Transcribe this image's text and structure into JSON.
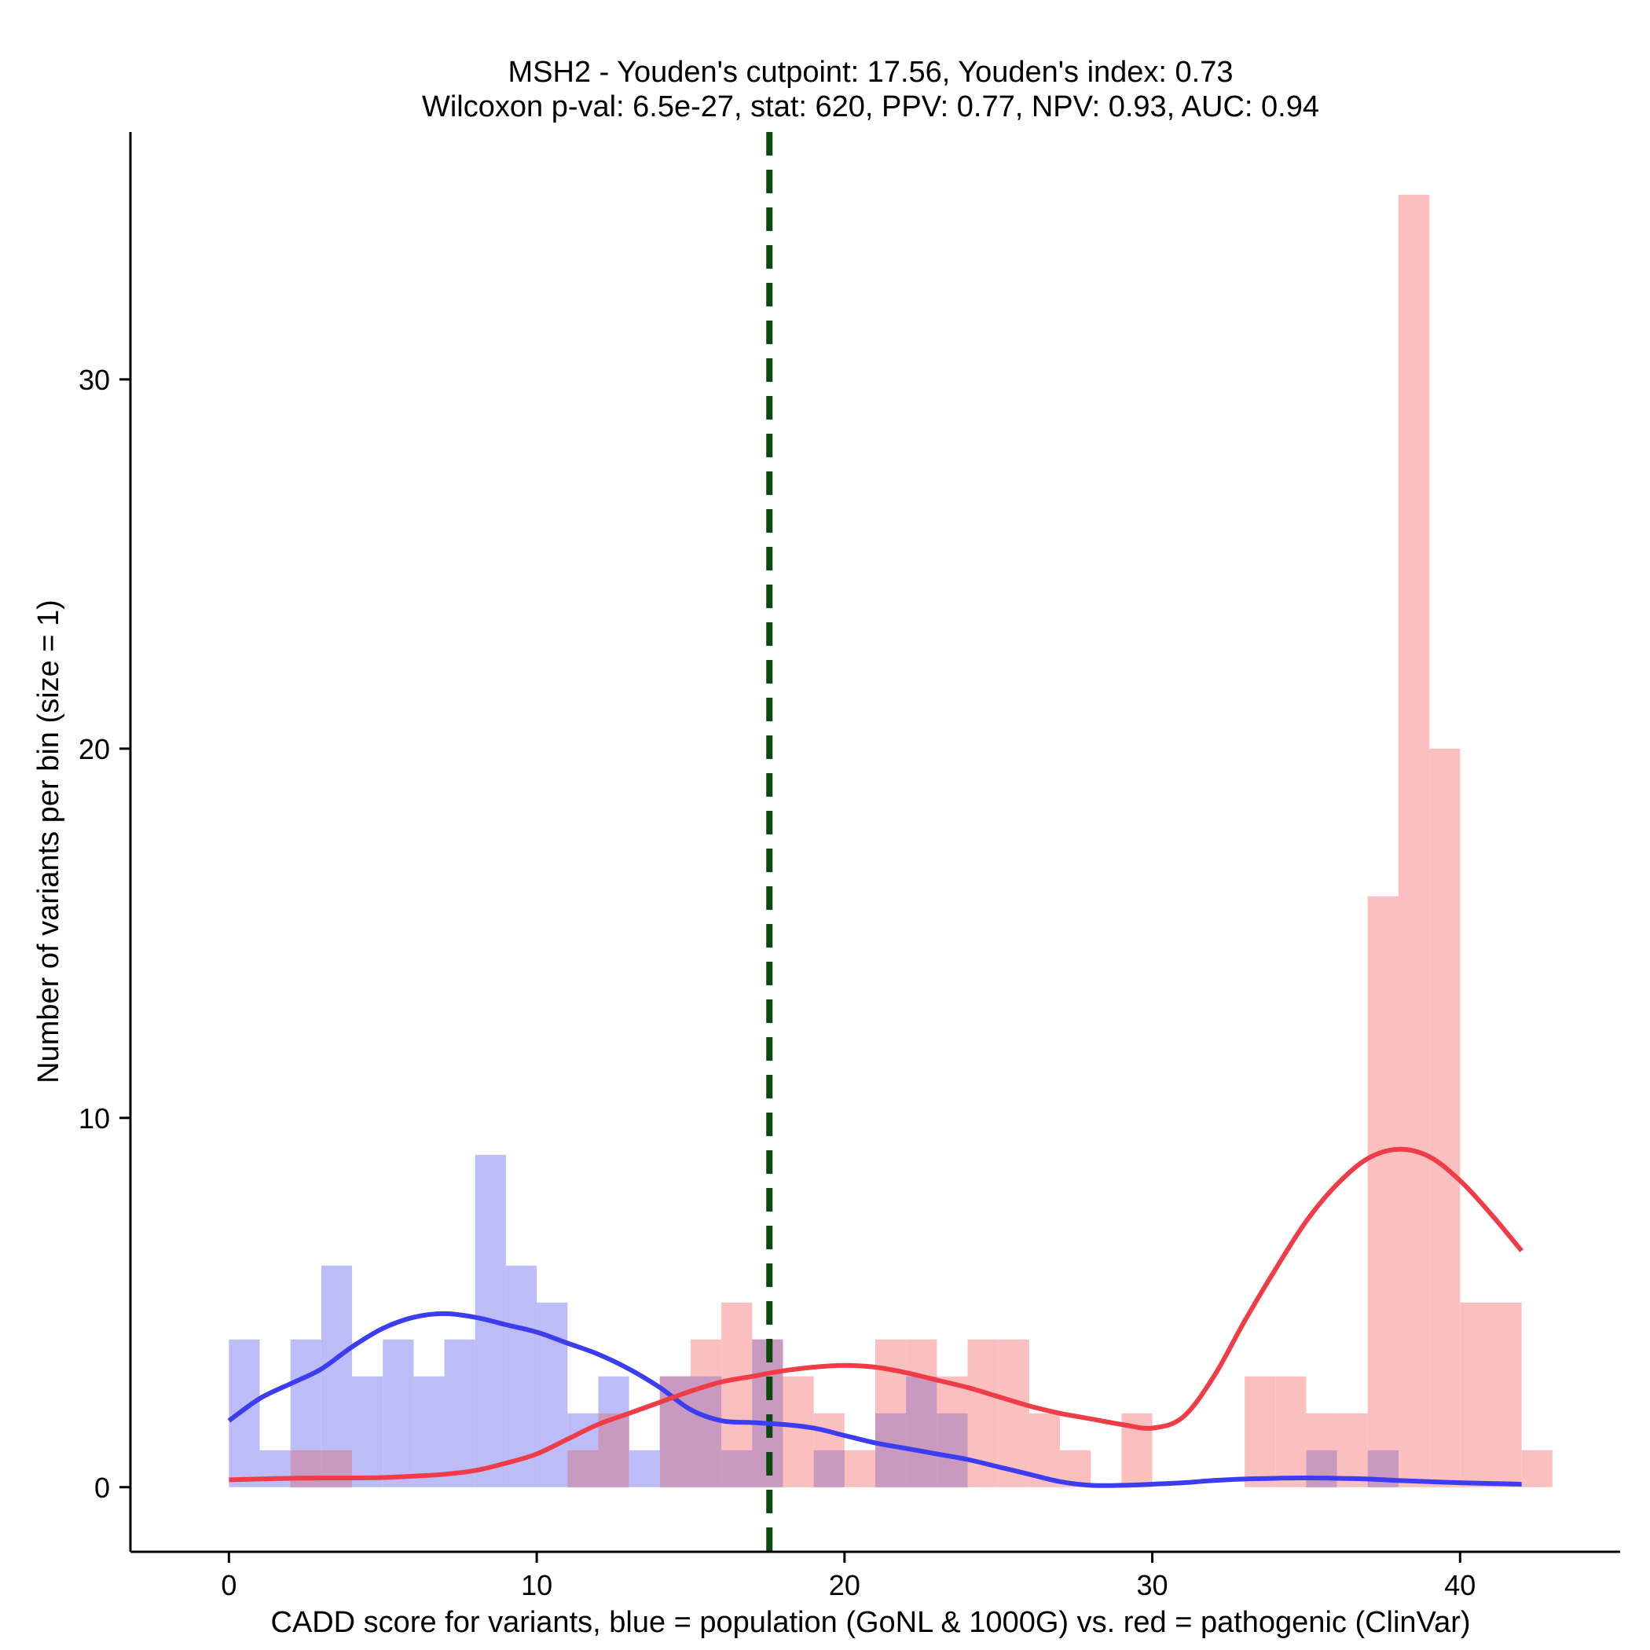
{
  "chart_data": {
    "type": "bar",
    "title_line1": "MSH2 - Youden's cutpoint: 17.56, Youden's index: 0.73",
    "title_line2": "Wilcoxon p-val: 6.5e-27, stat: 620, PPV: 0.77, NPV: 0.93, AUC: 0.94",
    "xlabel": "CADD score for variants, blue = population (GoNL & 1000G) vs. red = pathogenic (ClinVar)",
    "ylabel": "Number of variants per bin (size = 1)",
    "xlim": [
      -3.2,
      45.2
    ],
    "ylim": [
      -1.75,
      36.7
    ],
    "x_ticks": [
      0,
      10,
      20,
      30,
      40
    ],
    "y_ticks": [
      0,
      10,
      20,
      30
    ],
    "bin_width": 1,
    "cutpoint": 17.56,
    "colors": {
      "population_bar": "#bcbcf8",
      "pathogenic_bar": "#fcbfbf",
      "overlap_bar": "#c89ac0",
      "population_line": "#3c3cf0",
      "pathogenic_line": "#f03c46",
      "cutpoint_line": "#0a4a0a"
    },
    "series": [
      {
        "name": "population",
        "bin_starts": [
          0,
          1,
          2,
          3,
          4,
          5,
          6,
          7,
          8,
          9,
          10,
          11,
          12,
          13,
          14,
          15,
          16,
          17,
          18,
          19,
          20,
          21,
          22,
          23,
          24,
          25,
          26,
          27,
          28,
          29,
          30,
          31,
          32,
          33,
          34,
          35,
          36,
          37,
          38,
          39,
          40,
          41,
          42
        ],
        "values": [
          4,
          1,
          4,
          6,
          3,
          4,
          3,
          4,
          9,
          6,
          5,
          2,
          3,
          1,
          3,
          3,
          1,
          4,
          0,
          1,
          0,
          2,
          3,
          2,
          0,
          0,
          0,
          0,
          0,
          0,
          0,
          0,
          0,
          0,
          0,
          1,
          0,
          1,
          0,
          0,
          0,
          0,
          0
        ]
      },
      {
        "name": "pathogenic",
        "bin_starts": [
          0,
          1,
          2,
          3,
          4,
          5,
          6,
          7,
          8,
          9,
          10,
          11,
          12,
          13,
          14,
          15,
          16,
          17,
          18,
          19,
          20,
          21,
          22,
          23,
          24,
          25,
          26,
          27,
          28,
          29,
          30,
          31,
          32,
          33,
          34,
          35,
          36,
          37,
          38,
          39,
          40,
          41,
          42
        ],
        "values": [
          0,
          0,
          1,
          1,
          0,
          0,
          0,
          0,
          0,
          0,
          0,
          1,
          2,
          0,
          3,
          4,
          5,
          4,
          3,
          2,
          1,
          4,
          4,
          3,
          4,
          4,
          2,
          1,
          0,
          2,
          0,
          0,
          0,
          3,
          3,
          2,
          2,
          16,
          35,
          20,
          5,
          5,
          1
        ]
      }
    ],
    "density_lines": [
      {
        "name": "population",
        "x": [
          0,
          1,
          2,
          3,
          4,
          5,
          6,
          7,
          8,
          9,
          10,
          11,
          12,
          13,
          14,
          15,
          16,
          17,
          18,
          19,
          20,
          21,
          22,
          23,
          24,
          25,
          26,
          27,
          28,
          29,
          30,
          31,
          32,
          33,
          34,
          35,
          36,
          37,
          38,
          39,
          40,
          41,
          42
        ],
        "y": [
          1.8,
          2.4,
          2.8,
          3.2,
          3.8,
          4.3,
          4.6,
          4.7,
          4.6,
          4.4,
          4.2,
          3.9,
          3.6,
          3.2,
          2.7,
          2.1,
          1.8,
          1.75,
          1.7,
          1.6,
          1.4,
          1.2,
          1.05,
          0.9,
          0.75,
          0.55,
          0.35,
          0.15,
          0.05,
          0.05,
          0.08,
          0.12,
          0.18,
          0.22,
          0.24,
          0.25,
          0.24,
          0.22,
          0.18,
          0.15,
          0.12,
          0.1,
          0.08
        ]
      },
      {
        "name": "pathogenic",
        "x": [
          0,
          1,
          2,
          3,
          4,
          5,
          6,
          7,
          8,
          9,
          10,
          11,
          12,
          13,
          14,
          15,
          16,
          17,
          18,
          19,
          20,
          21,
          22,
          23,
          24,
          25,
          26,
          27,
          28,
          29,
          30,
          31,
          32,
          33,
          34,
          35,
          36,
          37,
          38,
          39,
          40,
          41,
          42
        ],
        "y": [
          0.2,
          0.22,
          0.24,
          0.25,
          0.25,
          0.26,
          0.3,
          0.35,
          0.45,
          0.65,
          0.9,
          1.3,
          1.7,
          2.0,
          2.3,
          2.6,
          2.85,
          3.0,
          3.15,
          3.25,
          3.3,
          3.25,
          3.1,
          2.9,
          2.7,
          2.45,
          2.2,
          2.0,
          1.85,
          1.7,
          1.6,
          1.9,
          3.0,
          4.5,
          5.9,
          7.2,
          8.2,
          8.9,
          9.15,
          8.95,
          8.3,
          7.4,
          6.4
        ]
      }
    ]
  }
}
